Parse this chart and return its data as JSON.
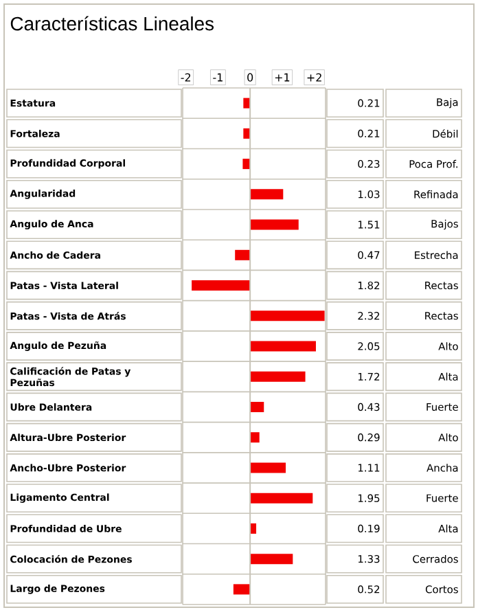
{
  "chart_data": {
    "type": "bar",
    "orientation": "horizontal",
    "title": "Características Lineales",
    "categories": [
      "Estatura",
      "Fortaleza",
      "Profundidad Corporal",
      "Angularidad",
      "Angulo de Anca",
      "Ancho de Cadera",
      "Patas - Vista Lateral",
      "Patas - Vista de Atrás",
      "Angulo de Pezuña",
      "Calificación de Patas y Pezuñas",
      "Ubre Delantera",
      "Altura-Ubre Posterior",
      "Ancho-Ubre Posterior",
      "Ligamento Central",
      "Profundidad de Ubre",
      "Colocación de Pezones",
      "Largo de Pezones"
    ],
    "values": [
      0.21,
      0.21,
      0.23,
      1.03,
      1.51,
      0.47,
      1.82,
      2.32,
      2.05,
      1.72,
      0.43,
      0.29,
      1.11,
      1.95,
      0.19,
      1.33,
      0.52
    ],
    "base": [
      -0.21,
      -0.21,
      -0.23,
      0,
      0,
      -0.47,
      -1.82,
      0,
      0,
      0,
      0,
      0,
      0,
      0,
      0,
      0,
      -0.52
    ],
    "value_labels": [
      "0.21",
      "0.21",
      "0.23",
      "1.03",
      "1.51",
      "0.47",
      "1.82",
      "2.32",
      "2.05",
      "1.72",
      "0.43",
      "0.29",
      "1.11",
      "1.95",
      "0.19",
      "1.33",
      "0.52"
    ],
    "color": "#f20000",
    "xlim": [
      -2.1,
      2.35
    ],
    "xticks": [
      -2,
      -1,
      0,
      {
        "value": 1,
        "label": "+1"
      },
      {
        "value": 2,
        "label": "+2"
      }
    ],
    "ref_lines": [
      {
        "axis": "x",
        "value": 0,
        "color": "#c8c4b8"
      }
    ],
    "annotations": [
      "Baja",
      "Débil",
      "Poca Prof.",
      "Refinada",
      "Bajos",
      "Estrecha",
      "Rectas",
      "Rectas",
      "Alto",
      "Alta",
      "Fuerte",
      "Alto",
      "Ancha",
      "Fuerte",
      "Alta",
      "Cerrados",
      "Cortos"
    ]
  }
}
